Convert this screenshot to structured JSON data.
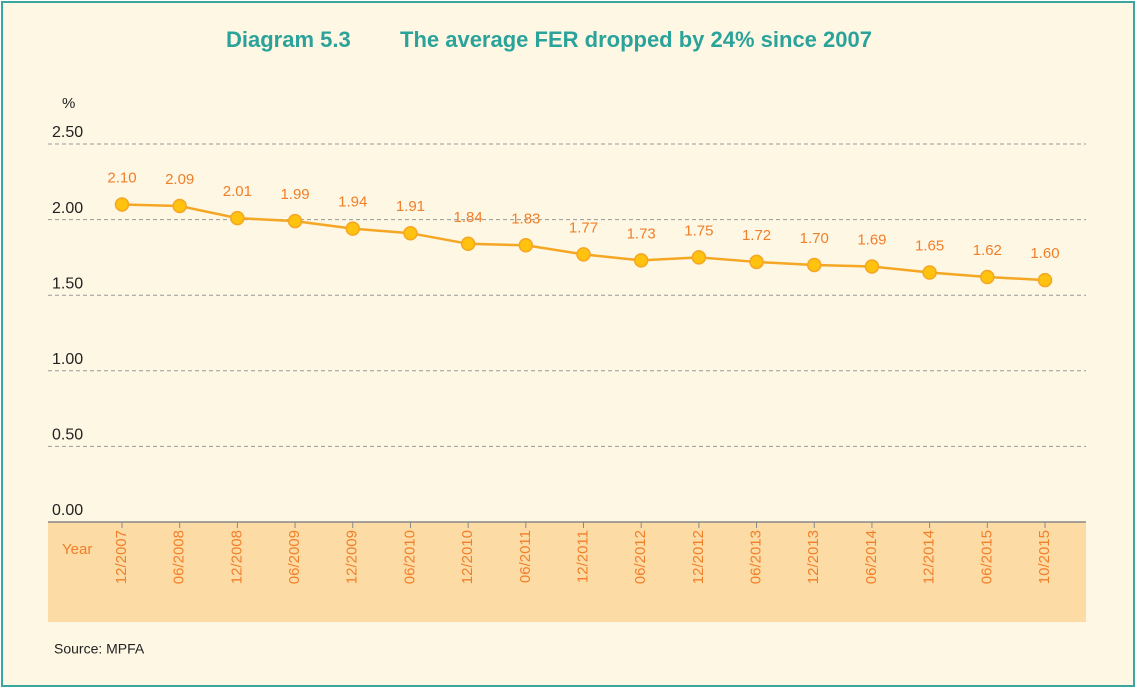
{
  "chart_data": {
    "type": "line",
    "label": "Diagram 5.3",
    "title": "The average FER dropped by 24% since 2007",
    "y_axis_label": "%",
    "x_axis_label": "Year",
    "source": "Source:   MPFA",
    "categories": [
      "12/2007",
      "06/2008",
      "12/2008",
      "06/2009",
      "12/2009",
      "06/2010",
      "12/2010",
      "06/2011",
      "12/2011",
      "06/2012",
      "12/2012",
      "06/2013",
      "12/2013",
      "06/2014",
      "12/2014",
      "06/2015",
      "10/2015"
    ],
    "values": [
      2.1,
      2.09,
      2.01,
      1.99,
      1.94,
      1.91,
      1.84,
      1.83,
      1.77,
      1.73,
      1.75,
      1.72,
      1.7,
      1.69,
      1.65,
      1.62,
      1.6
    ],
    "value_labels": [
      "2.10",
      "2.09",
      "2.01",
      "1.99",
      "1.94",
      "1.91",
      "1.84",
      "1.83",
      "1.77",
      "1.73",
      "1.75",
      "1.72",
      "1.70",
      "1.69",
      "1.65",
      "1.62",
      "1.60"
    ],
    "color": "#f5a623",
    "ylim": [
      0,
      2.5
    ],
    "yticks": [
      {
        "value": 0,
        "label": "0.00"
      },
      {
        "value": 0.5,
        "label": "0.50"
      },
      {
        "value": 1,
        "label": "1.00"
      },
      {
        "value": 1.5,
        "label": "1.50"
      },
      {
        "value": 2,
        "label": "2.00"
      },
      {
        "value": 2.5,
        "label": "2.50"
      }
    ],
    "grid": true
  }
}
